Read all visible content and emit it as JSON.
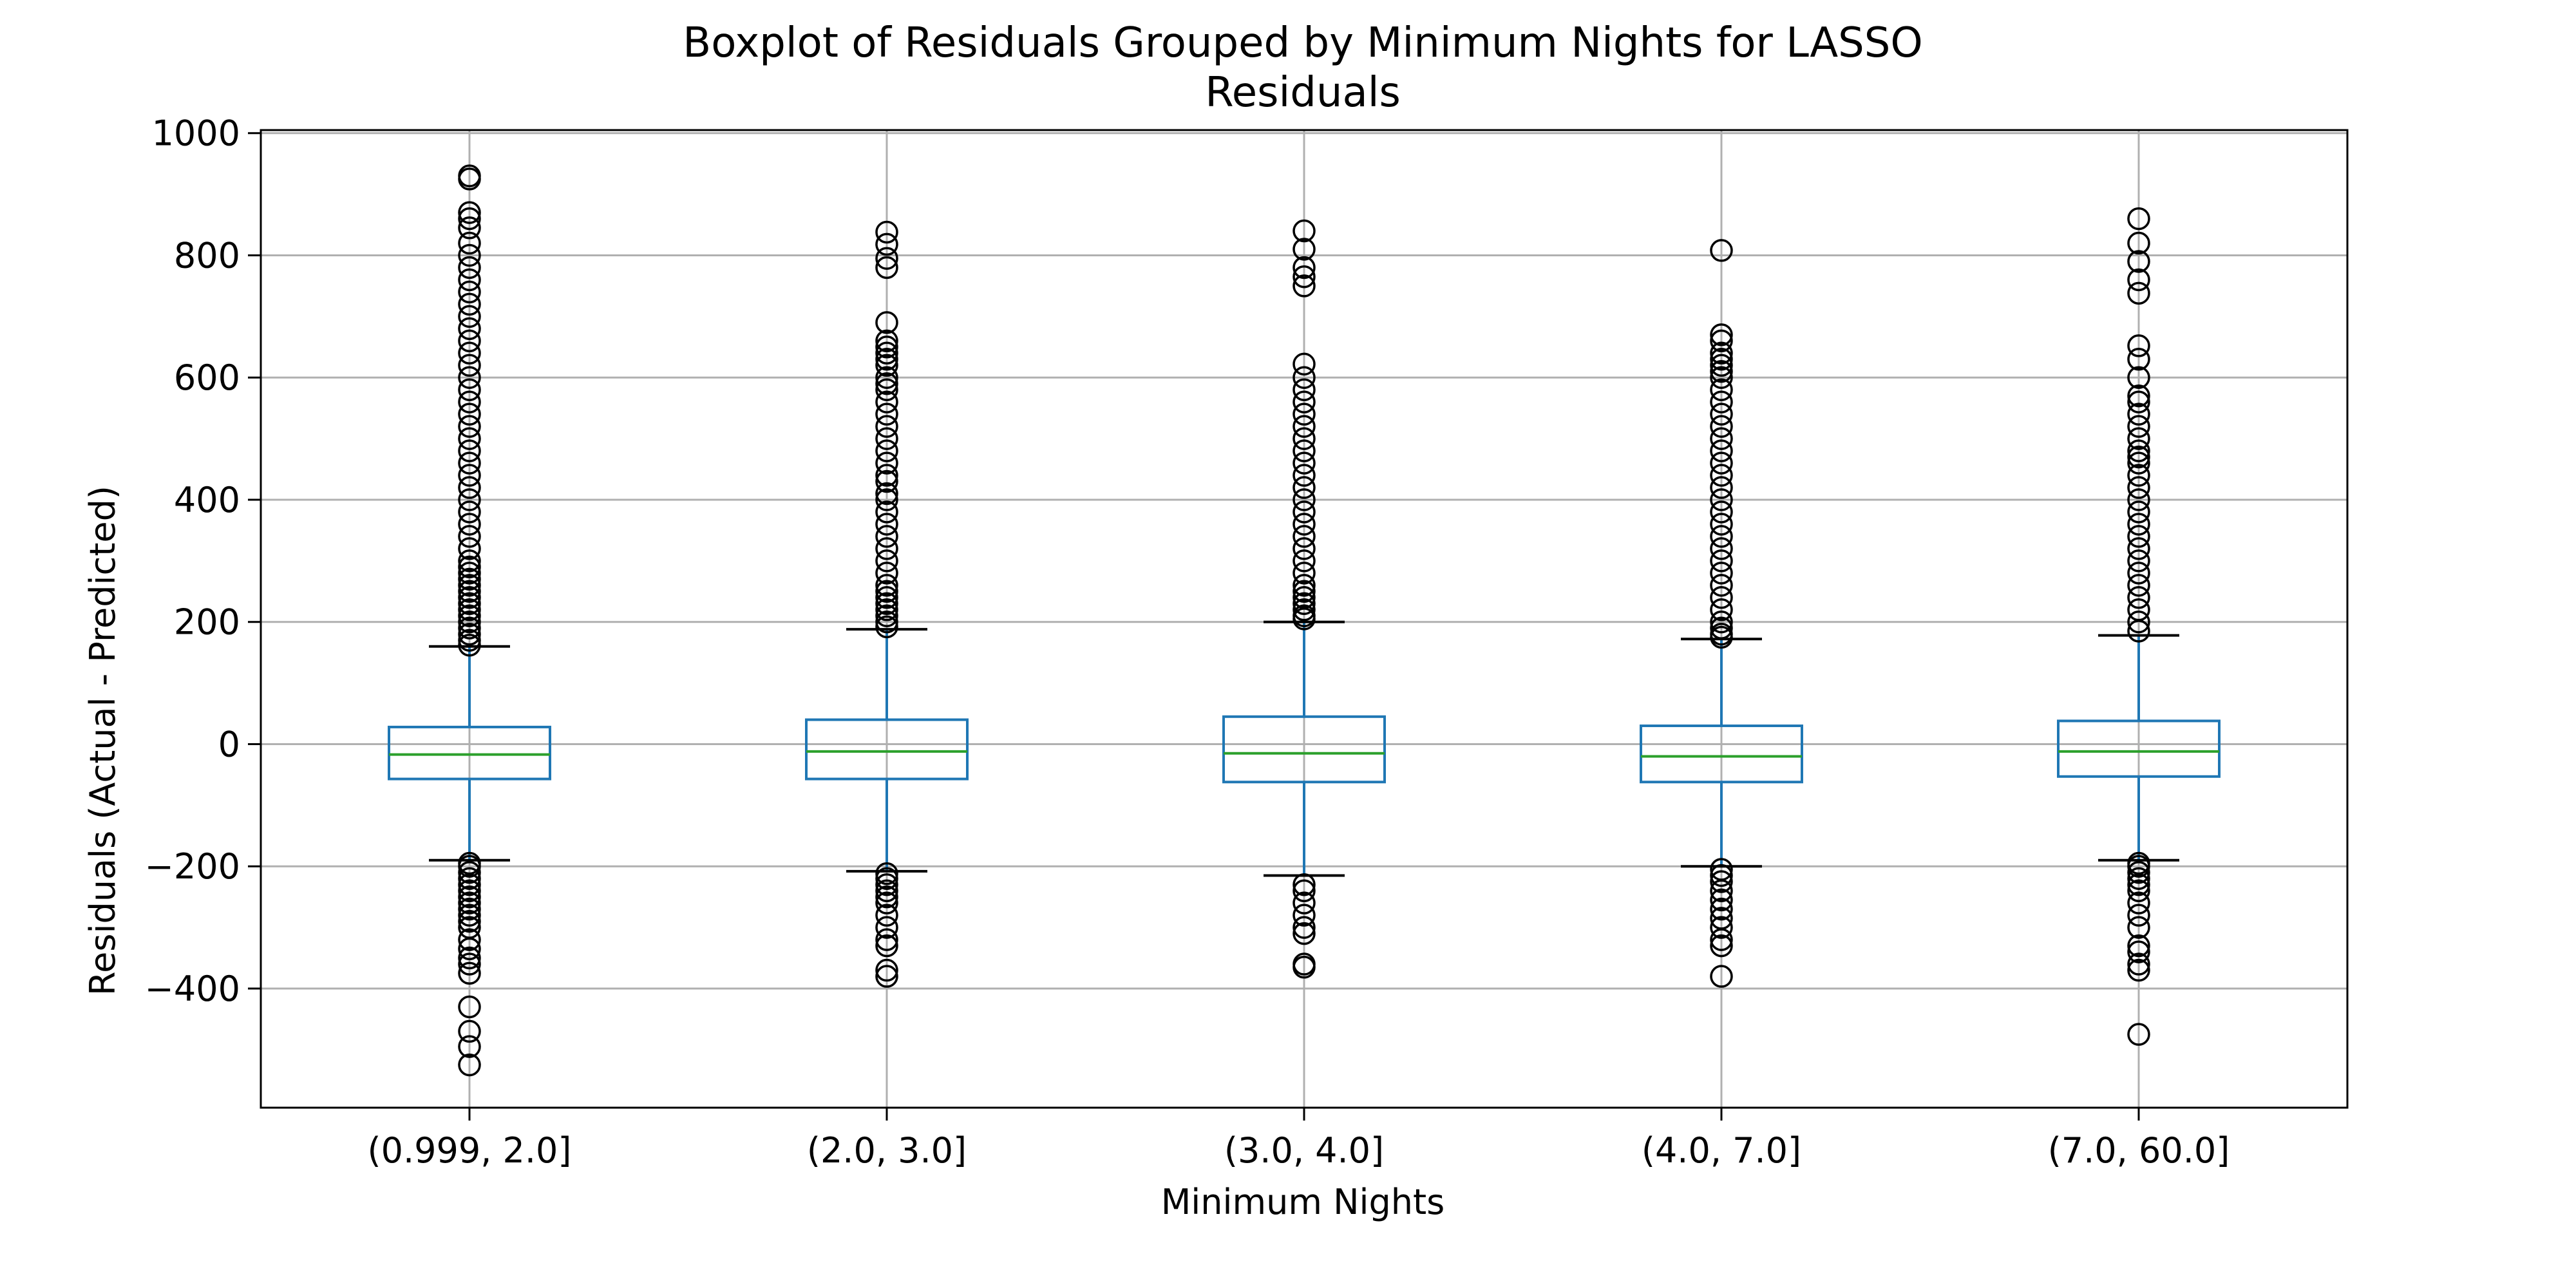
{
  "chart_data": {
    "type": "boxplot",
    "title": "Boxplot of Residuals Grouped by Minimum Nights for LASSO",
    "subtitle": "Residuals",
    "xlabel": "Minimum Nights",
    "ylabel": "Residuals (Actual - Predicted)",
    "ylim": [
      -595,
      1005
    ],
    "yticks": [
      -400,
      -200,
      0,
      200,
      400,
      600,
      800,
      1000
    ],
    "ytick_labels": [
      "−400",
      "−200",
      "0",
      "200",
      "400",
      "600",
      "800",
      "1000"
    ],
    "grid": true,
    "colors": {
      "box": "#1f77b4",
      "median": "#2ca02c",
      "grid": "#b0b0b0",
      "whisker_cap": "#000000",
      "outlier": "#000000"
    },
    "categories": [
      "(0.999, 2.0]",
      "(2.0, 3.0]",
      "(3.0, 4.0]",
      "(4.0, 7.0]",
      "(7.0, 60.0]"
    ],
    "boxes": [
      {
        "whislo": -190,
        "q1": -57,
        "med": -17,
        "q3": 28,
        "whishi": 160,
        "fliers": [
          930,
          925,
          870,
          860,
          845,
          820,
          800,
          780,
          760,
          740,
          720,
          700,
          680,
          660,
          640,
          620,
          600,
          580,
          560,
          540,
          520,
          500,
          480,
          460,
          440,
          420,
          400,
          380,
          360,
          340,
          320,
          300,
          290,
          280,
          270,
          260,
          250,
          240,
          230,
          220,
          210,
          200,
          190,
          180,
          170,
          162,
          -195,
          -200,
          -210,
          -220,
          -230,
          -240,
          -250,
          -260,
          -270,
          -280,
          -290,
          -300,
          -320,
          -335,
          -350,
          -360,
          -375,
          -430,
          -470,
          -495,
          -525
        ]
      },
      {
        "whislo": -208,
        "q1": -57,
        "med": -12,
        "q3": 40,
        "whishi": 188,
        "fliers": [
          838,
          818,
          795,
          780,
          690,
          660,
          650,
          640,
          630,
          620,
          600,
          590,
          580,
          560,
          540,
          520,
          500,
          480,
          460,
          440,
          430,
          410,
          400,
          380,
          360,
          340,
          320,
          300,
          280,
          260,
          250,
          240,
          230,
          220,
          210,
          200,
          192,
          -212,
          -220,
          -230,
          -240,
          -250,
          -260,
          -280,
          -300,
          -320,
          -330,
          -370,
          -380
        ]
      },
      {
        "whislo": -215,
        "q1": -62,
        "med": -15,
        "q3": 45,
        "whishi": 200,
        "fliers": [
          840,
          810,
          780,
          765,
          750,
          622,
          600,
          580,
          560,
          540,
          520,
          500,
          480,
          460,
          440,
          420,
          400,
          380,
          360,
          340,
          320,
          300,
          280,
          260,
          250,
          240,
          230,
          220,
          210,
          205,
          -230,
          -240,
          -260,
          -280,
          -300,
          -310,
          -360,
          -365
        ]
      },
      {
        "whislo": -200,
        "q1": -62,
        "med": -20,
        "q3": 30,
        "whishi": 172,
        "fliers": [
          808,
          670,
          660,
          640,
          630,
          620,
          610,
          600,
          580,
          560,
          540,
          520,
          500,
          480,
          460,
          440,
          420,
          400,
          380,
          360,
          340,
          320,
          300,
          280,
          260,
          240,
          220,
          200,
          190,
          180,
          175,
          -205,
          -215,
          -225,
          -240,
          -255,
          -270,
          -285,
          -300,
          -320,
          -330,
          -380
        ]
      },
      {
        "whislo": -190,
        "q1": -53,
        "med": -12,
        "q3": 38,
        "whishi": 178,
        "fliers": [
          860,
          820,
          790,
          760,
          738,
          652,
          630,
          600,
          570,
          560,
          540,
          520,
          500,
          480,
          470,
          460,
          440,
          420,
          400,
          380,
          360,
          340,
          320,
          300,
          280,
          260,
          240,
          220,
          200,
          185,
          -195,
          -200,
          -210,
          -220,
          -230,
          -240,
          -260,
          -280,
          -300,
          -330,
          -340,
          -360,
          -370,
          -475
        ]
      }
    ]
  }
}
